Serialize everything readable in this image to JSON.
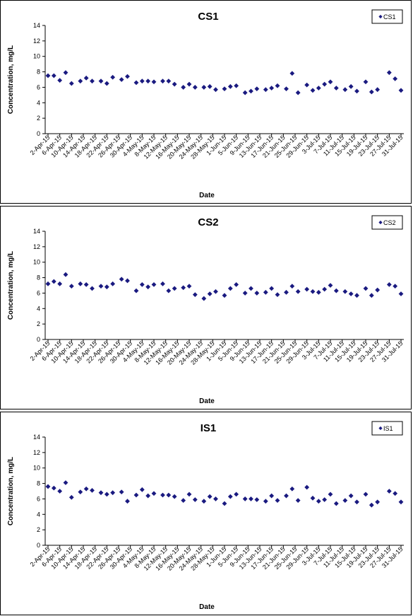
{
  "chart_data": [
    {
      "type": "scatter",
      "title": "CS1",
      "xlabel": "Date",
      "ylabel": "Concentration, mg/L",
      "ylim": [
        0,
        14
      ],
      "yticks": [
        0,
        2,
        4,
        6,
        8,
        10,
        12,
        14
      ],
      "xlim": [
        "2-Apr-15",
        "31-Jul-15"
      ],
      "xtick_labels": [
        "2-Apr-15",
        "6-Apr-15",
        "10-Apr-15",
        "14-Apr-15",
        "18-Apr-15",
        "22-Apr-15",
        "26-Apr-15",
        "30-Apr-15",
        "4-May-15",
        "8-May-15",
        "12-May-15",
        "16-May-15",
        "20-May-15",
        "24-May-15",
        "28-May-15",
        "1-Jun-15",
        "5-Jun-15",
        "9-Jun-15",
        "13-Jun-15",
        "17-Jun-15",
        "21-Jun-15",
        "25-Jun-15",
        "29-Jun-15",
        "3-Jul-15",
        "7-Jul-15",
        "11-Jul-15",
        "15-Jul-15",
        "19-Jul-15",
        "23-Jul-15",
        "27-Jul-15",
        "31-Jul-15"
      ],
      "grid": false,
      "legend": "top-right",
      "marker_color": "#1a1a80",
      "series": [
        {
          "name": "CS1",
          "points": [
            [
              "2-Apr-15",
              7.5
            ],
            [
              "4-Apr-15",
              7.5
            ],
            [
              "6-Apr-15",
              6.9
            ],
            [
              "8-Apr-15",
              7.9
            ],
            [
              "10-Apr-15",
              6.5
            ],
            [
              "13-Apr-15",
              6.8
            ],
            [
              "15-Apr-15",
              7.2
            ],
            [
              "17-Apr-15",
              6.8
            ],
            [
              "20-Apr-15",
              6.8
            ],
            [
              "22-Apr-15",
              6.5
            ],
            [
              "24-Apr-15",
              7.3
            ],
            [
              "27-Apr-15",
              7.0
            ],
            [
              "29-Apr-15",
              7.4
            ],
            [
              "2-May-15",
              6.6
            ],
            [
              "4-May-15",
              6.8
            ],
            [
              "6-May-15",
              6.8
            ],
            [
              "8-May-15",
              6.7
            ],
            [
              "11-May-15",
              6.8
            ],
            [
              "13-May-15",
              6.8
            ],
            [
              "15-May-15",
              6.4
            ],
            [
              "18-May-15",
              6.0
            ],
            [
              "20-May-15",
              6.4
            ],
            [
              "22-May-15",
              6.0
            ],
            [
              "25-May-15",
              6.0
            ],
            [
              "27-May-15",
              6.1
            ],
            [
              "29-May-15",
              5.7
            ],
            [
              "1-Jun-15",
              5.8
            ],
            [
              "3-Jun-15",
              6.1
            ],
            [
              "5-Jun-15",
              6.2
            ],
            [
              "8-Jun-15",
              5.3
            ],
            [
              "10-Jun-15",
              5.5
            ],
            [
              "12-Jun-15",
              5.8
            ],
            [
              "15-Jun-15",
              5.7
            ],
            [
              "17-Jun-15",
              5.9
            ],
            [
              "19-Jun-15",
              6.2
            ],
            [
              "22-Jun-15",
              5.8
            ],
            [
              "24-Jun-15",
              7.8
            ],
            [
              "26-Jun-15",
              5.3
            ],
            [
              "29-Jun-15",
              6.3
            ],
            [
              "1-Jul-15",
              5.6
            ],
            [
              "3-Jul-15",
              5.9
            ],
            [
              "5-Jul-15",
              6.4
            ],
            [
              "7-Jul-15",
              6.7
            ],
            [
              "9-Jul-15",
              5.9
            ],
            [
              "12-Jul-15",
              5.7
            ],
            [
              "14-Jul-15",
              6.1
            ],
            [
              "16-Jul-15",
              5.5
            ],
            [
              "19-Jul-15",
              6.7
            ],
            [
              "21-Jul-15",
              5.4
            ],
            [
              "23-Jul-15",
              5.7
            ],
            [
              "27-Jul-15",
              7.9
            ],
            [
              "29-Jul-15",
              7.1
            ],
            [
              "31-Jul-15",
              5.6
            ]
          ]
        }
      ]
    },
    {
      "type": "scatter",
      "title": "CS2",
      "xlabel": "Date",
      "ylabel": "Concentration, mg/L",
      "ylim": [
        0,
        14
      ],
      "yticks": [
        0,
        2,
        4,
        6,
        8,
        10,
        12,
        14
      ],
      "xlim": [
        "2-Apr-15",
        "31-Jul-15"
      ],
      "xtick_labels": [
        "2-Apr-15",
        "6-Apr-15",
        "10-Apr-15",
        "14-Apr-15",
        "18-Apr-15",
        "22-Apr-15",
        "26-Apr-15",
        "30-Apr-15",
        "4-May-15",
        "8-May-15",
        "12-May-15",
        "16-May-15",
        "20-May-15",
        "24-May-15",
        "28-May-15",
        "1-Jun-15",
        "5-Jun-15",
        "9-Jun-15",
        "13-Jun-15",
        "17-Jun-15",
        "21-Jun-15",
        "25-Jun-15",
        "29-Jun-15",
        "3-Jul-15",
        "7-Jul-15",
        "11-Jul-15",
        "15-Jul-15",
        "19-Jul-15",
        "23-Jul-15",
        "27-Jul-15",
        "31-Jul-15"
      ],
      "grid": false,
      "legend": "top-right",
      "marker_color": "#1a1a80",
      "series": [
        {
          "name": "CS2",
          "points": [
            [
              "2-Apr-15",
              7.2
            ],
            [
              "4-Apr-15",
              7.5
            ],
            [
              "6-Apr-15",
              7.2
            ],
            [
              "8-Apr-15",
              8.4
            ],
            [
              "10-Apr-15",
              6.9
            ],
            [
              "13-Apr-15",
              7.2
            ],
            [
              "15-Apr-15",
              7.1
            ],
            [
              "17-Apr-15",
              6.6
            ],
            [
              "20-Apr-15",
              6.9
            ],
            [
              "22-Apr-15",
              6.8
            ],
            [
              "24-Apr-15",
              7.2
            ],
            [
              "27-Apr-15",
              7.8
            ],
            [
              "29-Apr-15",
              7.6
            ],
            [
              "2-May-15",
              6.3
            ],
            [
              "4-May-15",
              7.1
            ],
            [
              "6-May-15",
              6.8
            ],
            [
              "8-May-15",
              7.1
            ],
            [
              "11-May-15",
              7.2
            ],
            [
              "13-May-15",
              6.3
            ],
            [
              "15-May-15",
              6.6
            ],
            [
              "18-May-15",
              6.7
            ],
            [
              "20-May-15",
              6.9
            ],
            [
              "22-May-15",
              5.8
            ],
            [
              "25-May-15",
              5.3
            ],
            [
              "27-May-15",
              5.9
            ],
            [
              "29-May-15",
              6.2
            ],
            [
              "1-Jun-15",
              5.7
            ],
            [
              "3-Jun-15",
              6.6
            ],
            [
              "5-Jun-15",
              7.1
            ],
            [
              "8-Jun-15",
              6.0
            ],
            [
              "10-Jun-15",
              6.6
            ],
            [
              "12-Jun-15",
              6.0
            ],
            [
              "15-Jun-15",
              6.1
            ],
            [
              "17-Jun-15",
              6.6
            ],
            [
              "19-Jun-15",
              5.8
            ],
            [
              "22-Jun-15",
              6.1
            ],
            [
              "24-Jun-15",
              6.9
            ],
            [
              "26-Jun-15",
              6.2
            ],
            [
              "29-Jun-15",
              6.5
            ],
            [
              "1-Jul-15",
              6.2
            ],
            [
              "3-Jul-15",
              6.1
            ],
            [
              "5-Jul-15",
              6.5
            ],
            [
              "7-Jul-15",
              7.0
            ],
            [
              "9-Jul-15",
              6.3
            ],
            [
              "12-Jul-15",
              6.2
            ],
            [
              "14-Jul-15",
              5.9
            ],
            [
              "16-Jul-15",
              5.7
            ],
            [
              "19-Jul-15",
              6.6
            ],
            [
              "21-Jul-15",
              5.7
            ],
            [
              "23-Jul-15",
              6.4
            ],
            [
              "27-Jul-15",
              7.1
            ],
            [
              "29-Jul-15",
              6.9
            ],
            [
              "31-Jul-15",
              5.9
            ]
          ]
        }
      ]
    },
    {
      "type": "scatter",
      "title": "IS1",
      "xlabel": "Date",
      "ylabel": "Concentration, mg/L",
      "ylim": [
        0,
        14
      ],
      "yticks": [
        0,
        2,
        4,
        6,
        8,
        10,
        12,
        14
      ],
      "xlim": [
        "2-Apr-15",
        "31-Jul-15"
      ],
      "xtick_labels": [
        "2-Apr-15",
        "6-Apr-15",
        "10-Apr-15",
        "14-Apr-15",
        "18-Apr-15",
        "22-Apr-15",
        "26-Apr-15",
        "30-Apr-15",
        "4-May-15",
        "8-May-15",
        "12-May-15",
        "16-May-15",
        "20-May-15",
        "24-May-15",
        "28-May-15",
        "1-Jun-15",
        "5-Jun-15",
        "9-Jun-15",
        "13-Jun-15",
        "17-Jun-15",
        "21-Jun-15",
        "25-Jun-15",
        "29-Jun-15",
        "3-Jul-15",
        "7-Jul-15",
        "11-Jul-15",
        "15-Jul-15",
        "19-Jul-15",
        "23-Jul-15",
        "27-Jul-15",
        "31-Jul-15"
      ],
      "grid": false,
      "legend": "top-right",
      "marker_color": "#1a1a80",
      "series": [
        {
          "name": "IS1",
          "points": [
            [
              "2-Apr-15",
              7.6
            ],
            [
              "4-Apr-15",
              7.4
            ],
            [
              "6-Apr-15",
              7.0
            ],
            [
              "8-Apr-15",
              8.1
            ],
            [
              "10-Apr-15",
              6.2
            ],
            [
              "13-Apr-15",
              6.9
            ],
            [
              "15-Apr-15",
              7.3
            ],
            [
              "17-Apr-15",
              7.1
            ],
            [
              "20-Apr-15",
              6.8
            ],
            [
              "22-Apr-15",
              6.6
            ],
            [
              "24-Apr-15",
              6.8
            ],
            [
              "27-Apr-15",
              6.9
            ],
            [
              "29-Apr-15",
              5.7
            ],
            [
              "2-May-15",
              6.5
            ],
            [
              "4-May-15",
              7.2
            ],
            [
              "6-May-15",
              6.4
            ],
            [
              "8-May-15",
              6.7
            ],
            [
              "11-May-15",
              6.5
            ],
            [
              "13-May-15",
              6.5
            ],
            [
              "15-May-15",
              6.3
            ],
            [
              "18-May-15",
              5.8
            ],
            [
              "20-May-15",
              6.6
            ],
            [
              "22-May-15",
              5.9
            ],
            [
              "25-May-15",
              5.7
            ],
            [
              "27-May-15",
              6.3
            ],
            [
              "29-May-15",
              6.0
            ],
            [
              "1-Jun-15",
              5.4
            ],
            [
              "3-Jun-15",
              6.3
            ],
            [
              "5-Jun-15",
              6.6
            ],
            [
              "8-Jun-15",
              6.0
            ],
            [
              "10-Jun-15",
              6.0
            ],
            [
              "12-Jun-15",
              5.9
            ],
            [
              "15-Jun-15",
              5.7
            ],
            [
              "17-Jun-15",
              6.4
            ],
            [
              "19-Jun-15",
              5.8
            ],
            [
              "22-Jun-15",
              6.4
            ],
            [
              "24-Jun-15",
              7.3
            ],
            [
              "26-Jun-15",
              5.8
            ],
            [
              "29-Jun-15",
              7.5
            ],
            [
              "1-Jul-15",
              6.1
            ],
            [
              "3-Jul-15",
              5.7
            ],
            [
              "5-Jul-15",
              5.9
            ],
            [
              "7-Jul-15",
              6.6
            ],
            [
              "9-Jul-15",
              5.4
            ],
            [
              "12-Jul-15",
              5.8
            ],
            [
              "14-Jul-15",
              6.4
            ],
            [
              "16-Jul-15",
              5.6
            ],
            [
              "19-Jul-15",
              6.6
            ],
            [
              "21-Jul-15",
              5.2
            ],
            [
              "23-Jul-15",
              5.6
            ],
            [
              "27-Jul-15",
              7.0
            ],
            [
              "29-Jul-15",
              6.7
            ],
            [
              "31-Jul-15",
              5.6
            ]
          ]
        }
      ]
    }
  ]
}
